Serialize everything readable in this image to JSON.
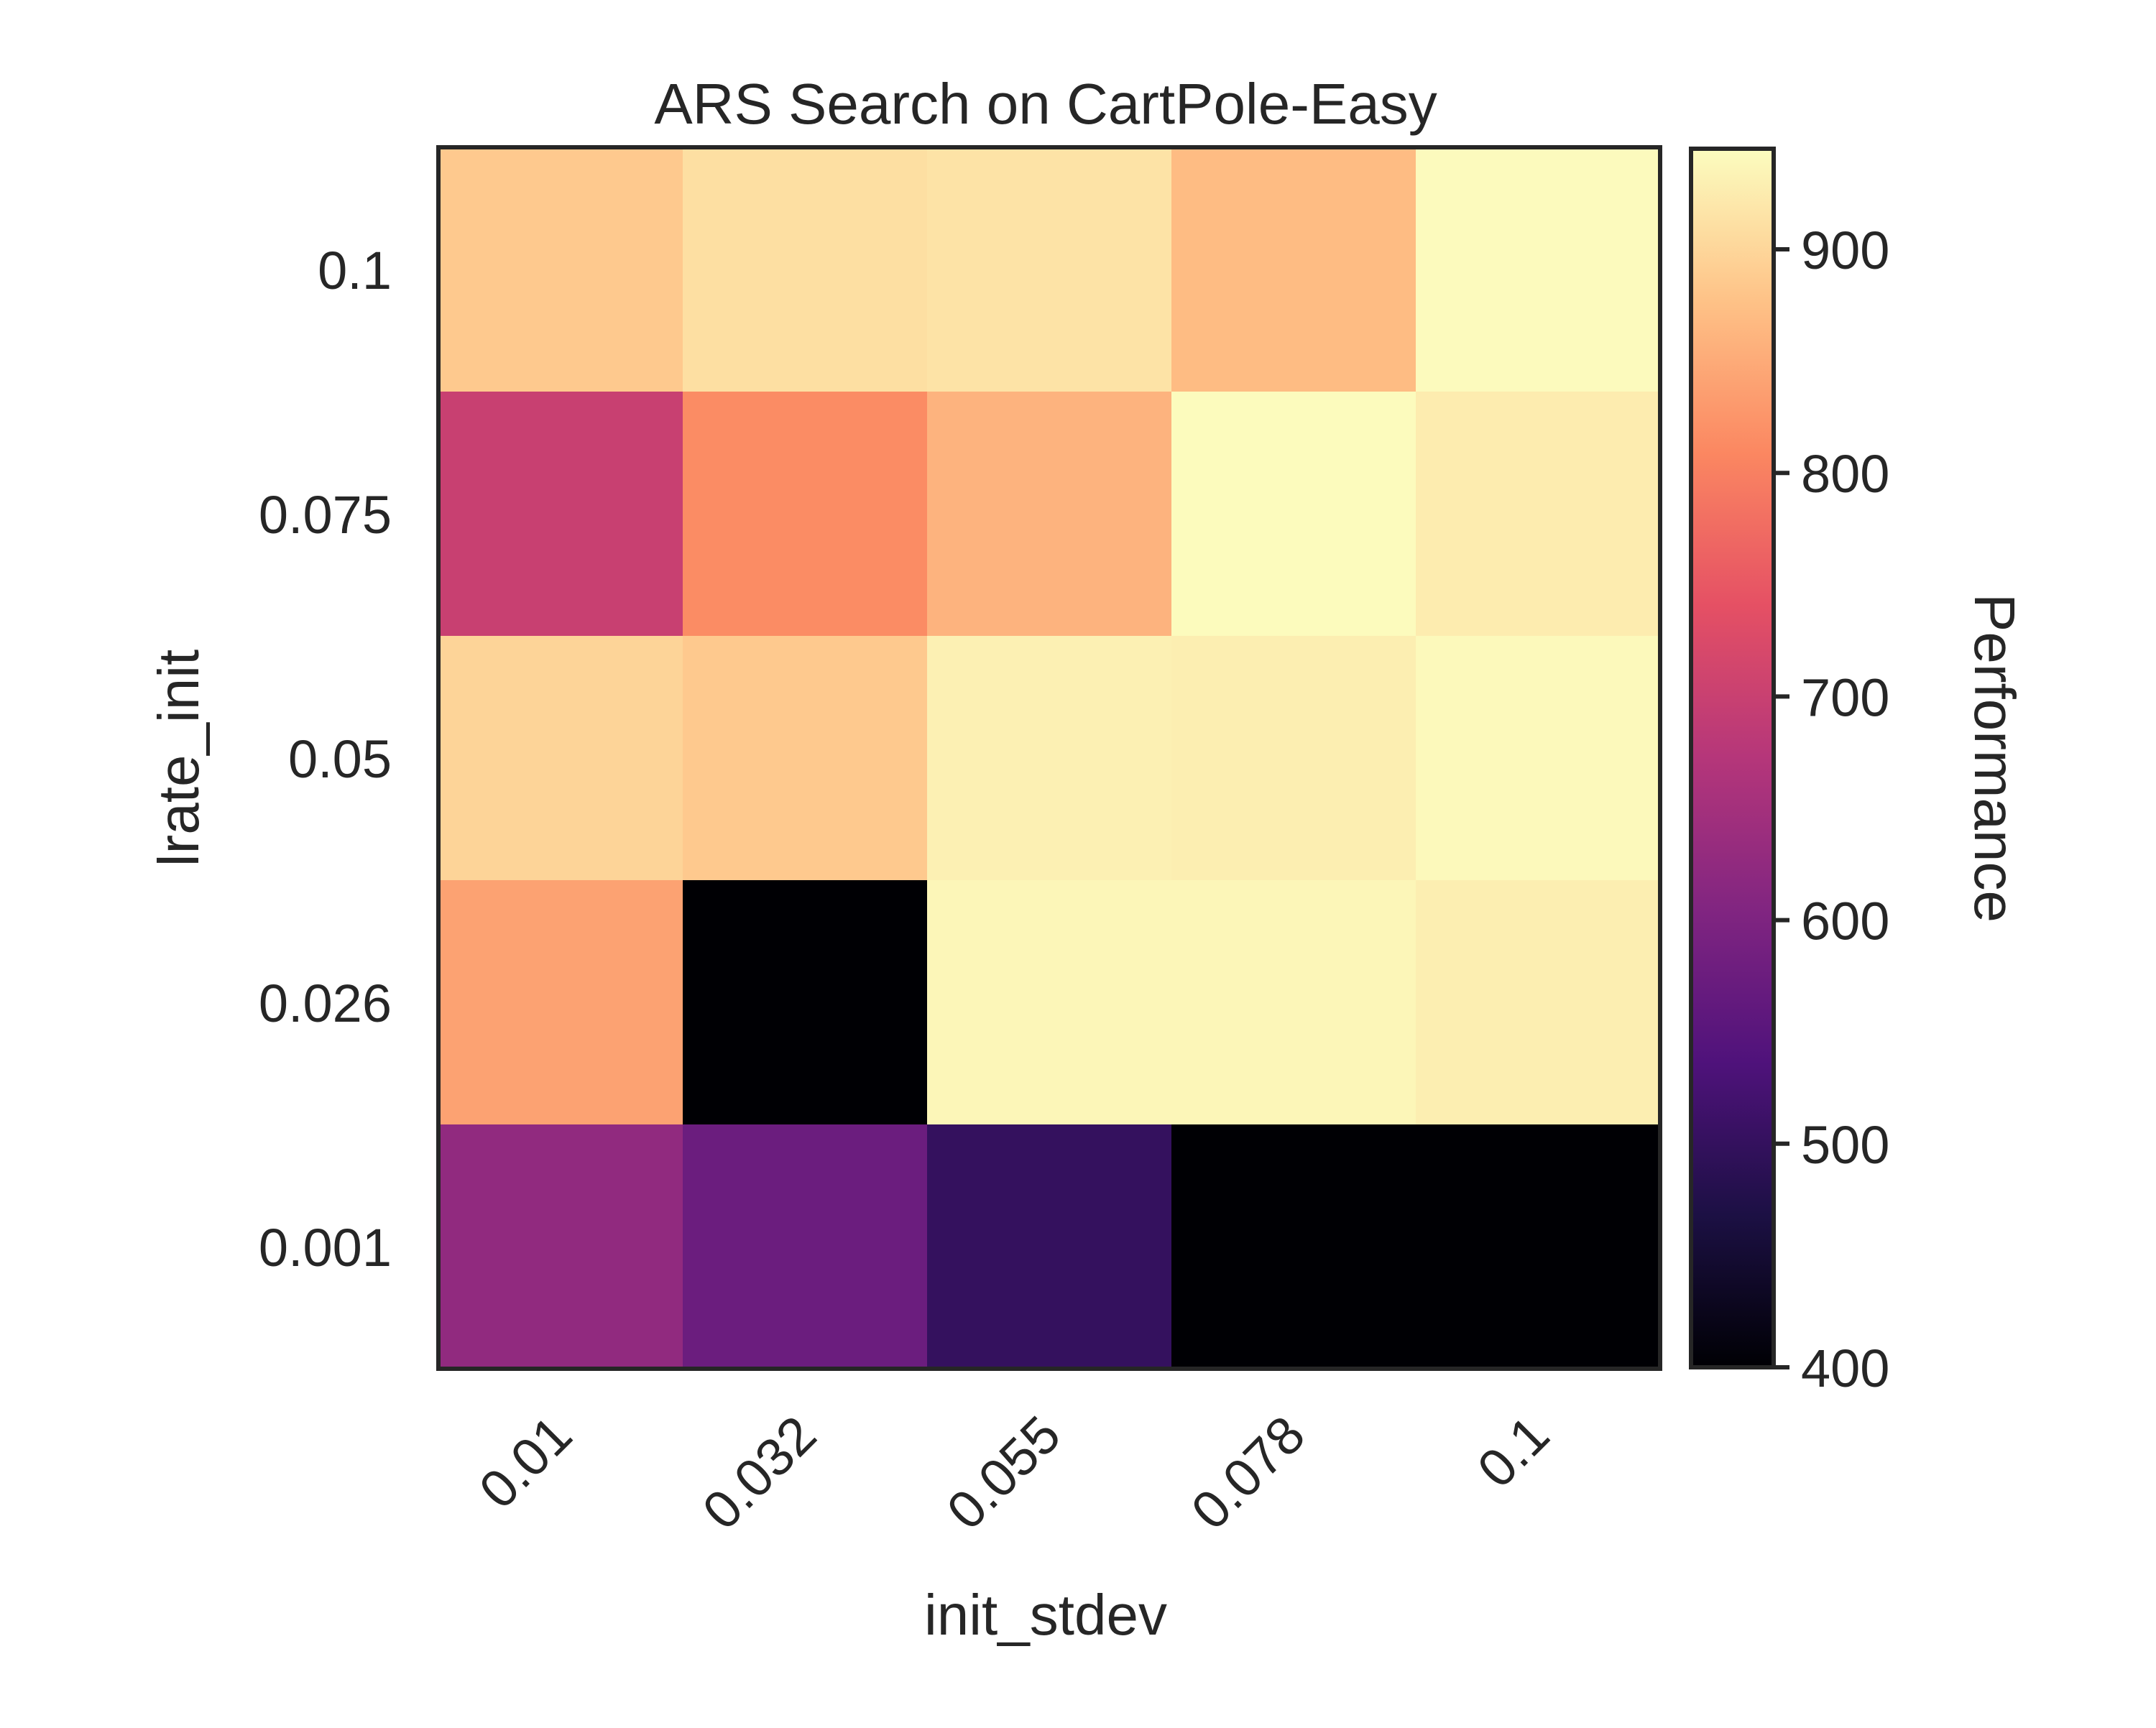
{
  "chart_data": {
    "type": "heatmap",
    "title": "ARS Search on CartPole-Easy",
    "xlabel": "init_stdev",
    "ylabel": "lrate_init",
    "x_categories": [
      "0.01",
      "0.032",
      "0.055",
      "0.078",
      "0.1"
    ],
    "y_categories": [
      "0.1",
      "0.075",
      "0.05",
      "0.026",
      "0.001"
    ],
    "values": [
      [
        885,
        910,
        915,
        870,
        942
      ],
      [
        700,
        815,
        860,
        943,
        925
      ],
      [
        898,
        885,
        930,
        928,
        940
      ],
      [
        840,
        390,
        937,
        937,
        928
      ],
      [
        625,
        575,
        500,
        380,
        380
      ]
    ],
    "colorbar": {
      "label": "Performance",
      "vmin": 400,
      "vmax": 945,
      "ticks": [
        "400",
        "500",
        "600",
        "700",
        "800",
        "900"
      ],
      "colormap": "magma"
    },
    "grid": false
  }
}
